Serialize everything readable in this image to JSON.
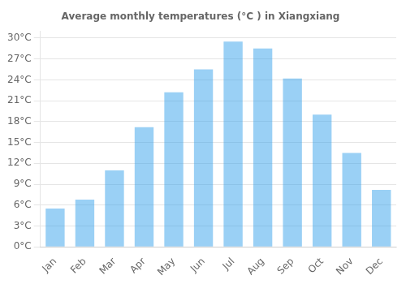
{
  "chart_data": {
    "type": "bar",
    "title": "Average monthly temperatures (°C ) in Xiangxiang",
    "categories": [
      "Jan",
      "Feb",
      "Mar",
      "Apr",
      "May",
      "Jun",
      "Jul",
      "Aug",
      "Sep",
      "Oct",
      "Nov",
      "Dec"
    ],
    "values": [
      5.5,
      6.8,
      11.0,
      17.2,
      22.2,
      25.5,
      29.5,
      28.5,
      24.2,
      19.0,
      13.5,
      8.2
    ],
    "ylim": [
      0,
      31
    ],
    "yticks": [
      {
        "value": 0,
        "label": "0°C"
      },
      {
        "value": 3,
        "label": "3°C"
      },
      {
        "value": 6,
        "label": "6°C"
      },
      {
        "value": 9,
        "label": "9°C"
      },
      {
        "value": 12,
        "label": "12°C"
      },
      {
        "value": 15,
        "label": "15°C"
      },
      {
        "value": 18,
        "label": "18°C"
      },
      {
        "value": 21,
        "label": "21°C"
      },
      {
        "value": 24,
        "label": "24°C"
      },
      {
        "value": 27,
        "label": "27°C"
      },
      {
        "value": 30,
        "label": "30°C"
      }
    ],
    "grid": true
  }
}
